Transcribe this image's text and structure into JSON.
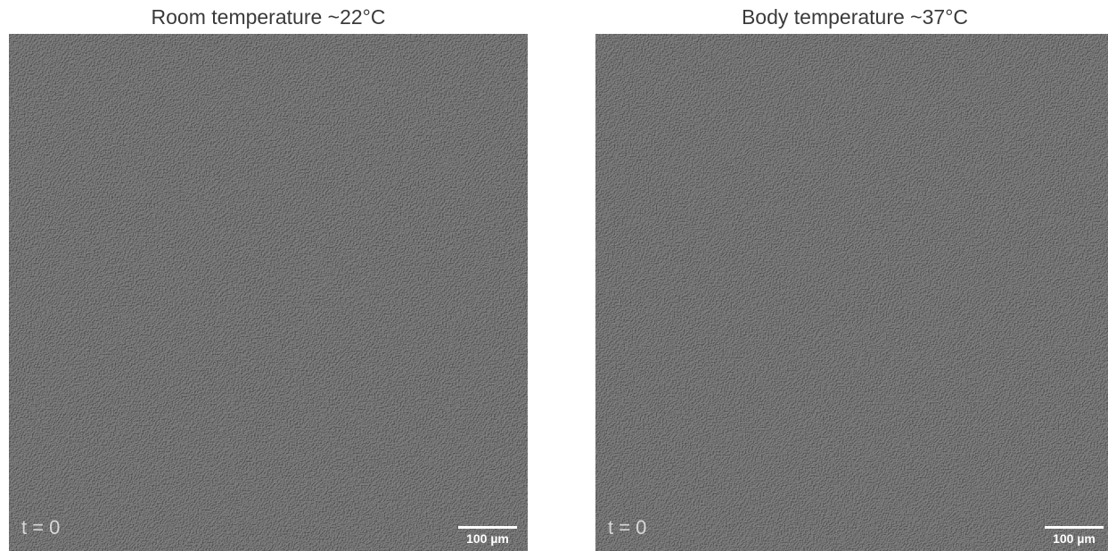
{
  "panels": [
    {
      "title": "Room temperature ~22°C",
      "time_label": "t = 0",
      "scale_bar_label": "100 µm"
    },
    {
      "title": "Body temperature ~37°C",
      "time_label": "t = 0",
      "scale_bar_label": "100 µm"
    }
  ],
  "colors": {
    "background": "#ffffff",
    "micrograph_base": "#777777",
    "label_text": "#d8d8d8",
    "scale_bar": "#ffffff",
    "title_text": "#3a3a3a"
  }
}
